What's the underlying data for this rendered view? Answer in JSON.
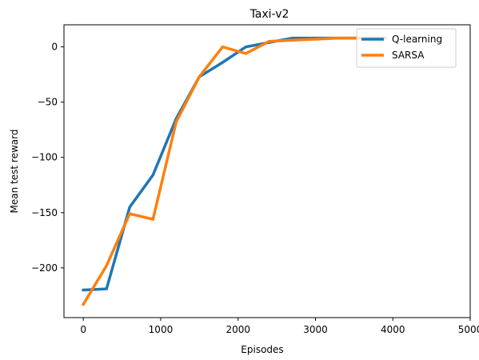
{
  "chart_data": {
    "type": "line",
    "title": "Taxi-v2",
    "xlabel": "Episodes",
    "ylabel": "Mean test reward",
    "xlim": [
      -250,
      5000
    ],
    "ylim": [
      -245,
      20
    ],
    "xticks": [
      0,
      1000,
      2000,
      3000,
      4000,
      5000
    ],
    "yticks": [
      -200,
      -150,
      -100,
      -50,
      0
    ],
    "xtick_labels": [
      "0",
      "1000",
      "2000",
      "3000",
      "4000",
      "5000"
    ],
    "ytick_labels": [
      "−200",
      "−150",
      "−100",
      "−50",
      "0"
    ],
    "grid": false,
    "legend_position": "top-right",
    "series": [
      {
        "name": "Q-learning",
        "color": "#1f77b4",
        "x": [
          0,
          300,
          600,
          900,
          1200,
          1500,
          1800,
          2100,
          2400,
          2700,
          3000,
          3300,
          3600,
          3900
        ],
        "y": [
          -220,
          -219,
          -145,
          -116,
          -65,
          -27,
          -14,
          0,
          4,
          8,
          8,
          8,
          8,
          8
        ]
      },
      {
        "name": "SARSA",
        "color": "#ff7f0e",
        "x": [
          0,
          300,
          600,
          900,
          1200,
          1500,
          1800,
          2100,
          2400,
          2700,
          3000,
          3300,
          3600,
          3900
        ],
        "y": [
          -233,
          -198,
          -151,
          -156,
          -68,
          -27,
          0,
          -6,
          5,
          6,
          7,
          8,
          8,
          8
        ]
      }
    ]
  }
}
